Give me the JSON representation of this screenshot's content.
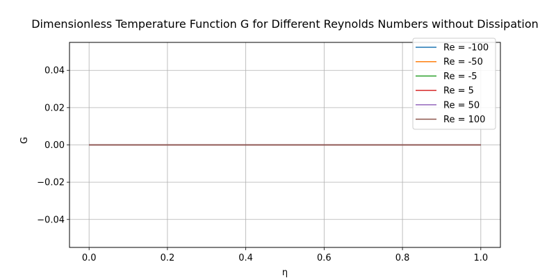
{
  "chart_data": {
    "type": "line",
    "title": "Dimensionless Temperature Function G for Different Reynolds Numbers without Dissipation",
    "xlabel": "η",
    "ylabel": "G",
    "xlim": [
      -0.05,
      1.05
    ],
    "ylim": [
      -0.055,
      0.055
    ],
    "x_ticks": [
      0.0,
      0.2,
      0.4,
      0.6,
      0.8,
      1.0
    ],
    "x_tick_labels": [
      "0.0",
      "0.2",
      "0.4",
      "0.6",
      "0.8",
      "1.0"
    ],
    "y_ticks": [
      -0.04,
      -0.02,
      0.0,
      0.02,
      0.04
    ],
    "y_tick_labels": [
      "−0.04",
      "−0.02",
      "0.00",
      "0.02",
      "0.04"
    ],
    "grid": true,
    "legend_position": "top-right",
    "x": [
      0.0,
      0.2,
      0.4,
      0.6,
      0.8,
      1.0
    ],
    "series": [
      {
        "name": "Re = -100",
        "color": "#1f77b4",
        "values": [
          0,
          0,
          0,
          0,
          0,
          0
        ]
      },
      {
        "name": "Re = -50",
        "color": "#ff7f0e",
        "values": [
          0,
          0,
          0,
          0,
          0,
          0
        ]
      },
      {
        "name": "Re = -5",
        "color": "#2ca02c",
        "values": [
          0,
          0,
          0,
          0,
          0,
          0
        ]
      },
      {
        "name": "Re = 5",
        "color": "#d62728",
        "values": [
          0,
          0,
          0,
          0,
          0,
          0
        ]
      },
      {
        "name": "Re = 50",
        "color": "#9467bd",
        "values": [
          0,
          0,
          0,
          0,
          0,
          0
        ]
      },
      {
        "name": "Re = 100",
        "color": "#8c564b",
        "values": [
          0,
          0,
          0,
          0,
          0,
          0
        ]
      }
    ]
  }
}
